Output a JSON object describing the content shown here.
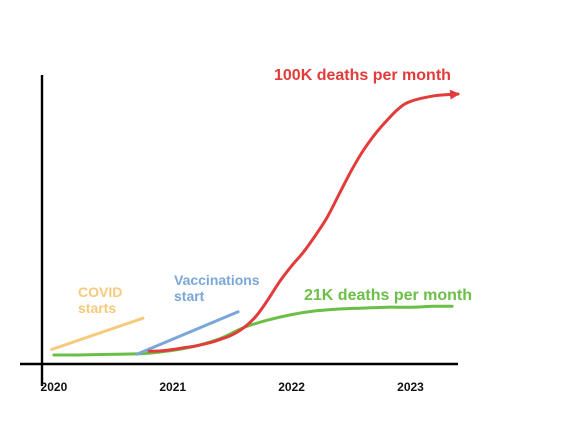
{
  "chart_data": {
    "type": "line",
    "title": "",
    "xlabel": "",
    "ylabel": "",
    "xlim": [
      2019.9,
      2023.4
    ],
    "grid": false,
    "legend": "none",
    "x_ticks": [
      "2020",
      "2021",
      "2022",
      "2023"
    ],
    "series": [
      {
        "color": "#e23b3b",
        "arrow_end": true,
        "points": [
          [
            2020.8,
            0.04
          ],
          [
            2020.9,
            0.045
          ],
          [
            2021.0,
            0.06
          ],
          [
            2021.1,
            0.08
          ],
          [
            2021.2,
            0.1
          ],
          [
            2021.3,
            0.13
          ],
          [
            2021.4,
            0.17
          ],
          [
            2021.5,
            0.22
          ],
          [
            2021.6,
            0.3
          ],
          [
            2021.7,
            0.42
          ],
          [
            2021.8,
            0.6
          ],
          [
            2021.9,
            0.8
          ],
          [
            2022.0,
            0.97
          ],
          [
            2022.1,
            1.12
          ],
          [
            2022.2,
            1.3
          ],
          [
            2022.3,
            1.5
          ],
          [
            2022.4,
            1.75
          ],
          [
            2022.5,
            2.0
          ],
          [
            2022.6,
            2.22
          ],
          [
            2022.7,
            2.4
          ],
          [
            2022.8,
            2.55
          ],
          [
            2022.9,
            2.68
          ],
          [
            2023.0,
            2.76
          ],
          [
            2023.2,
            2.82
          ],
          [
            2023.4,
            2.84
          ]
        ]
      },
      {
        "color": "#6bbf47",
        "arrow_end": false,
        "points": [
          [
            2020.0,
            0.0
          ],
          [
            2020.2,
            0.0
          ],
          [
            2020.4,
            0.005
          ],
          [
            2020.6,
            0.01
          ],
          [
            2020.8,
            0.02
          ],
          [
            2021.0,
            0.05
          ],
          [
            2021.2,
            0.1
          ],
          [
            2021.4,
            0.18
          ],
          [
            2021.6,
            0.3
          ],
          [
            2021.8,
            0.38
          ],
          [
            2022.0,
            0.44
          ],
          [
            2022.2,
            0.48
          ],
          [
            2022.4,
            0.5
          ],
          [
            2022.6,
            0.51
          ],
          [
            2022.8,
            0.52
          ],
          [
            2023.0,
            0.52
          ],
          [
            2023.2,
            0.53
          ],
          [
            2023.35,
            0.53
          ]
        ]
      },
      {
        "color": "#f7c97b",
        "arrow_end": false,
        "points": [
          [
            2019.98,
            0.06
          ],
          [
            2020.75,
            0.4
          ]
        ]
      },
      {
        "color": "#7aa7d8",
        "arrow_end": false,
        "points": [
          [
            2020.7,
            0.01
          ],
          [
            2021.55,
            0.47
          ]
        ]
      }
    ],
    "annotations": [
      {
        "id": "red",
        "lines": [
          "100K deaths per month"
        ],
        "color": "#e23b3b"
      },
      {
        "id": "green",
        "lines": [
          "21K deaths per month"
        ],
        "color": "#6bbf47"
      },
      {
        "id": "covid",
        "lines": [
          "COVID",
          "starts"
        ],
        "color": "#f7c97b"
      },
      {
        "id": "vacc",
        "lines": [
          "Vaccinations",
          "start"
        ],
        "color": "#7aa7d8"
      }
    ]
  }
}
